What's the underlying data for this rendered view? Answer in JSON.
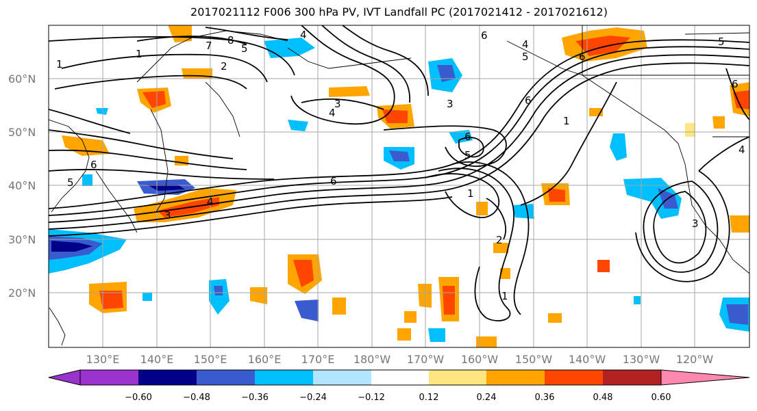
{
  "title": "2017021112 F006 300 hPa PV, IVT Landfall PC (2017021412 - 2017021612)",
  "lat_labels": [
    "60°N",
    "50°N",
    "40°N",
    "30°N",
    "20°N"
  ],
  "lon_labels": [
    "130°E",
    "140°E",
    "150°E",
    "160°E",
    "170°E",
    "180°W",
    "170°W",
    "160°W",
    "150°W",
    "140°W",
    "130°W",
    "120°W"
  ],
  "colorbar": {
    "ticks": [
      "−0.60",
      "−0.48",
      "−0.36",
      "−0.24",
      "−0.12",
      "0.12",
      "0.24",
      "0.36",
      "0.48",
      "0.60"
    ],
    "colors": [
      "#9a32cd",
      "#00008b",
      "#3a5bd0",
      "#00bfff",
      "#b2e5ff",
      "#ffffff",
      "#ffe680",
      "#ffa500",
      "#ff4500",
      "#b22222",
      "#ff88b0"
    ]
  },
  "contour_labels": [
    "1",
    "2",
    "3",
    "4",
    "5",
    "6",
    "7",
    "8"
  ]
}
